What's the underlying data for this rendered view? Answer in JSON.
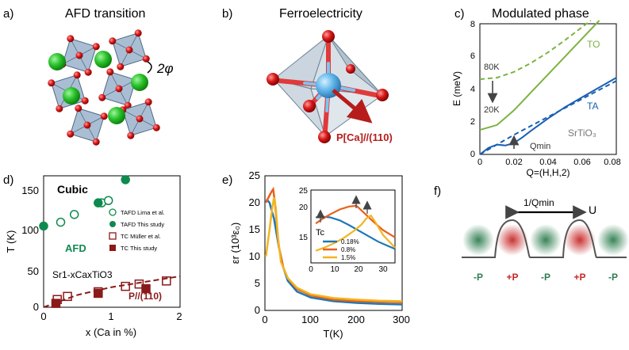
{
  "panels": {
    "a": {
      "label": "a)",
      "title": "AFD transition",
      "angle": "2φ"
    },
    "b": {
      "label": "b)",
      "title": "Ferroelectricity",
      "polarization": "P[Ca]//(110)"
    },
    "c": {
      "label": "c)",
      "title": "Modulated phase",
      "xlabel": "Q=(H,H,2)",
      "ylabel": "E (meV)",
      "xticks": [
        "0",
        "0.02",
        "0.04",
        "0.06",
        "0.08"
      ],
      "yticks": [
        "0",
        "2",
        "4",
        "6",
        "8"
      ],
      "to_label": "TO",
      "ta_label": "TA",
      "material": "SrTiO₃",
      "temp_high": "80K",
      "temp_low": "20K",
      "qmin": "Qmin"
    },
    "d": {
      "label": "d)",
      "xlabel": "x (Ca in %)",
      "ylabel": "T (K)",
      "xticks": [
        "0",
        "1",
        "2"
      ],
      "yticks": [
        "0",
        "50",
        "100",
        "150"
      ],
      "cubic": "Cubic",
      "afd": "AFD",
      "formula": "Sr1-xCaxTiO3",
      "ferro": "P//(110)",
      "legend": [
        "TAFD Lima et al.",
        "TAFD This study",
        "TC Müller et al.",
        "TC This study"
      ]
    },
    "e": {
      "label": "e)",
      "xlabel": "T(K)",
      "ylabel": "εr (10³ε₀)",
      "xticks": [
        "0",
        "100",
        "200",
        "300"
      ],
      "yticks": [
        "0",
        "5",
        "10",
        "15",
        "20",
        "25"
      ],
      "inset_xticks": [
        "0",
        "10",
        "20",
        "30"
      ],
      "inset_yticks": [
        "15",
        "20",
        "25"
      ],
      "tc": "Tc",
      "legend": [
        "0.18%",
        "0.8%",
        "1.5%"
      ],
      "colors": [
        "#1f77b4",
        "#e8601c",
        "#f2b51f"
      ]
    },
    "f": {
      "label": "f)",
      "period": "1/Qmin",
      "u": "U",
      "charges": [
        "-P",
        "+P",
        "-P",
        "+P",
        "-P"
      ]
    }
  },
  "chart_data": [
    {
      "type": "line",
      "panel": "c",
      "title": "Modulated phase",
      "xlabel": "Q=(H,H,2)",
      "ylabel": "E (meV)",
      "xlim": [
        0,
        0.08
      ],
      "ylim": [
        0,
        8
      ],
      "series": [
        {
          "name": "TO 80K",
          "style": "dashed",
          "color": "#7cb342",
          "x": [
            0,
            0.01,
            0.02,
            0.03,
            0.04,
            0.05,
            0.06,
            0.065
          ],
          "y": [
            4.6,
            4.7,
            5.05,
            5.6,
            6.25,
            7.0,
            7.8,
            8.2
          ]
        },
        {
          "name": "TO 20K",
          "style": "solid",
          "color": "#7cb342",
          "x": [
            0,
            0.01,
            0.02,
            0.03,
            0.04,
            0.05,
            0.06,
            0.07
          ],
          "y": [
            1.5,
            1.8,
            2.7,
            3.8,
            4.9,
            6.0,
            7.1,
            8.2
          ]
        },
        {
          "name": "TA 80K",
          "style": "dashed",
          "color": "#1a5fb4",
          "x": [
            0,
            0.01,
            0.02,
            0.03,
            0.04,
            0.05,
            0.06,
            0.07,
            0.08
          ],
          "y": [
            0,
            0.6,
            1.2,
            1.75,
            2.3,
            2.85,
            3.4,
            3.95,
            4.5
          ]
        },
        {
          "name": "TA 20K",
          "style": "solid",
          "color": "#1a5fb4",
          "x": [
            0,
            0.005,
            0.01,
            0.015,
            0.02,
            0.025,
            0.03,
            0.04,
            0.05,
            0.06,
            0.07,
            0.08
          ],
          "y": [
            0,
            0.4,
            0.6,
            0.55,
            0.7,
            1.05,
            1.45,
            2.2,
            2.9,
            3.5,
            4.1,
            4.7
          ]
        }
      ]
    },
    {
      "type": "scatter",
      "panel": "d",
      "xlabel": "x (Ca in %)",
      "ylabel": "T (K)",
      "xlim": [
        0,
        2
      ],
      "ylim": [
        0,
        170
      ],
      "series": [
        {
          "name": "TAFD Lima et al.",
          "marker": "circle-open",
          "color": "#0f8a4f",
          "x": [
            0.25,
            0.45,
            0.85,
            0.95
          ],
          "y": [
            110,
            120,
            135,
            138
          ]
        },
        {
          "name": "TAFD This study",
          "marker": "circle-filled",
          "color": "#0f8a4f",
          "x": [
            0.0,
            0.8,
            1.2
          ],
          "y": [
            105,
            135,
            165
          ]
        },
        {
          "name": "TC Müller et al.",
          "marker": "square-open",
          "color": "#8b1a1a",
          "x": [
            0.2,
            0.35,
            0.8,
            1.2,
            1.4,
            1.8
          ],
          "y": [
            10,
            14,
            20,
            27,
            30,
            34
          ]
        },
        {
          "name": "TC This study",
          "marker": "square-filled",
          "color": "#8b1a1a",
          "x": [
            0.18,
            0.8,
            1.5
          ],
          "y": [
            5,
            18,
            24
          ]
        },
        {
          "name": "phase boundary",
          "style": "dashed",
          "color": "#8b1a1a",
          "x": [
            0,
            0.5,
            1.0,
            1.5,
            2.0
          ],
          "y": [
            0,
            16,
            26,
            33,
            40
          ]
        }
      ]
    },
    {
      "type": "line",
      "panel": "e",
      "xlabel": "T(K)",
      "ylabel": "εr (10³ε₀)",
      "xlim": [
        0,
        300
      ],
      "ylim": [
        0,
        25
      ],
      "series": [
        {
          "name": "0.18%",
          "color": "#1f77b4",
          "x": [
            2,
            6,
            10,
            20,
            30,
            40,
            50,
            70,
            100,
            150,
            200,
            250,
            300
          ],
          "y": [
            20.5,
            20.4,
            20,
            17,
            12,
            8,
            5.5,
            3.5,
            2.4,
            1.7,
            1.4,
            1.2,
            1.1
          ]
        },
        {
          "name": "0.8%",
          "color": "#e8601c",
          "x": [
            2,
            8,
            14,
            18,
            22,
            30,
            40,
            50,
            70,
            100,
            150,
            200,
            250,
            300
          ],
          "y": [
            20,
            21,
            22,
            22.5,
            20,
            12,
            8,
            6,
            4,
            2.8,
            2,
            1.7,
            1.6,
            1.5
          ]
        },
        {
          "name": "1.5%",
          "color": "#f2b51f",
          "x": [
            2,
            10,
            16,
            20,
            24,
            28,
            35,
            50,
            70,
            100,
            150,
            200,
            250,
            300
          ],
          "y": [
            10,
            15,
            19,
            21,
            19,
            14,
            9,
            6,
            4.2,
            3,
            2.3,
            2,
            1.8,
            1.7
          ]
        }
      ]
    },
    {
      "type": "line",
      "panel": "e-inset",
      "xlim": [
        0,
        35
      ],
      "ylim": [
        13,
        25
      ],
      "series": [
        {
          "name": "0.18%",
          "color": "#1f77b4",
          "x": [
            2,
            5,
            8,
            12,
            16,
            20,
            24,
            28,
            32,
            35
          ],
          "y": [
            20.5,
            20.6,
            20.5,
            20,
            19.2,
            18.3,
            17.4,
            16.5,
            15.8,
            15.3
          ]
        },
        {
          "name": "0.8%",
          "color": "#e8601c",
          "x": [
            2,
            5,
            8,
            12,
            16,
            19,
            22,
            26,
            30,
            35
          ],
          "y": [
            19.5,
            20.3,
            21,
            21.8,
            22.3,
            22.4,
            21.3,
            19.8,
            18.4,
            17.2
          ]
        },
        {
          "name": "1.5%",
          "color": "#f2b51f",
          "x": [
            2,
            6,
            10,
            14,
            18,
            21,
            23,
            25,
            27,
            30,
            35
          ],
          "y": [
            15,
            15.6,
            16.3,
            17.2,
            18.3,
            19.3,
            20.3,
            20.8,
            19.6,
            17.6,
            15.5
          ]
        }
      ]
    }
  ]
}
